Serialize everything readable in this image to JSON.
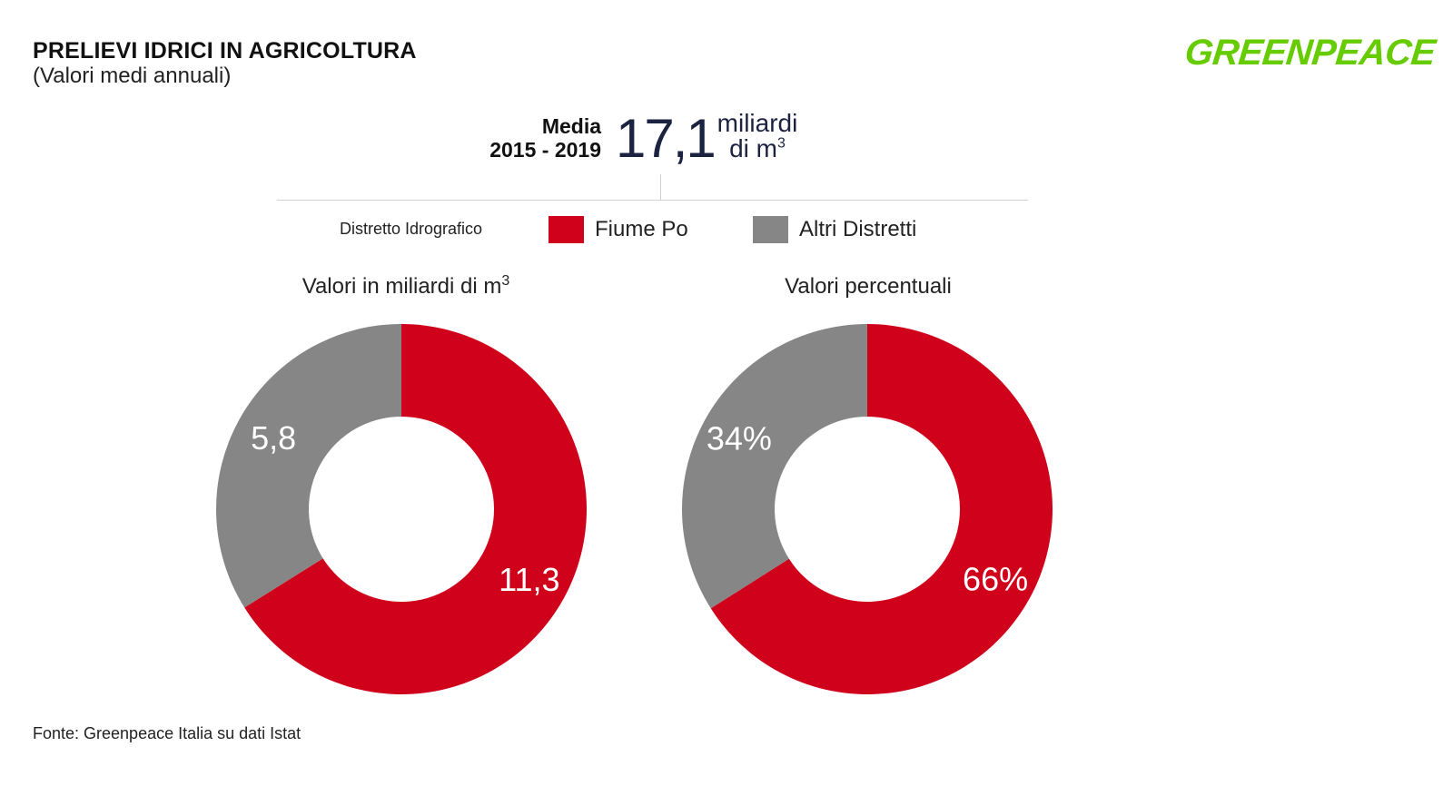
{
  "header": {
    "title": "PRELIEVI IDRICI IN AGRICOLTURA",
    "subtitle": "(Valori medi annuali)",
    "logo_text": "GREENPEACE"
  },
  "summary": {
    "label_line1": "Media",
    "label_line2": "2015 - 2019",
    "value": "17,1",
    "unit_line1": "miliardi",
    "unit_line2_base": "di m",
    "unit_line2_sup": "3"
  },
  "legend": {
    "title": "Distretto Idrografico",
    "items": [
      {
        "label": "Fiume Po",
        "color": "#d0021b"
      },
      {
        "label": "Altri Distretti",
        "color": "#868686"
      }
    ]
  },
  "footer": {
    "source": "Fonte: Greenpeace Italia su dati Istat"
  },
  "colors": {
    "po": "#d0021b",
    "others": "#868686",
    "logo": "#66cc00",
    "accent_text": "#1c2340"
  },
  "chart_data": [
    {
      "type": "pie",
      "variant": "donut",
      "title_base": "Valori in miliardi di m",
      "title_sup": "3",
      "categories": [
        "Fiume Po",
        "Altri Distretti"
      ],
      "values": [
        11.3,
        5.8
      ],
      "data_labels": [
        "11,3",
        "5,8"
      ]
    },
    {
      "type": "pie",
      "variant": "donut",
      "title_base": "Valori percentuali",
      "title_sup": "",
      "categories": [
        "Fiume Po",
        "Altri Distretti"
      ],
      "values": [
        66,
        34
      ],
      "data_labels": [
        "66%",
        "34%"
      ]
    }
  ]
}
